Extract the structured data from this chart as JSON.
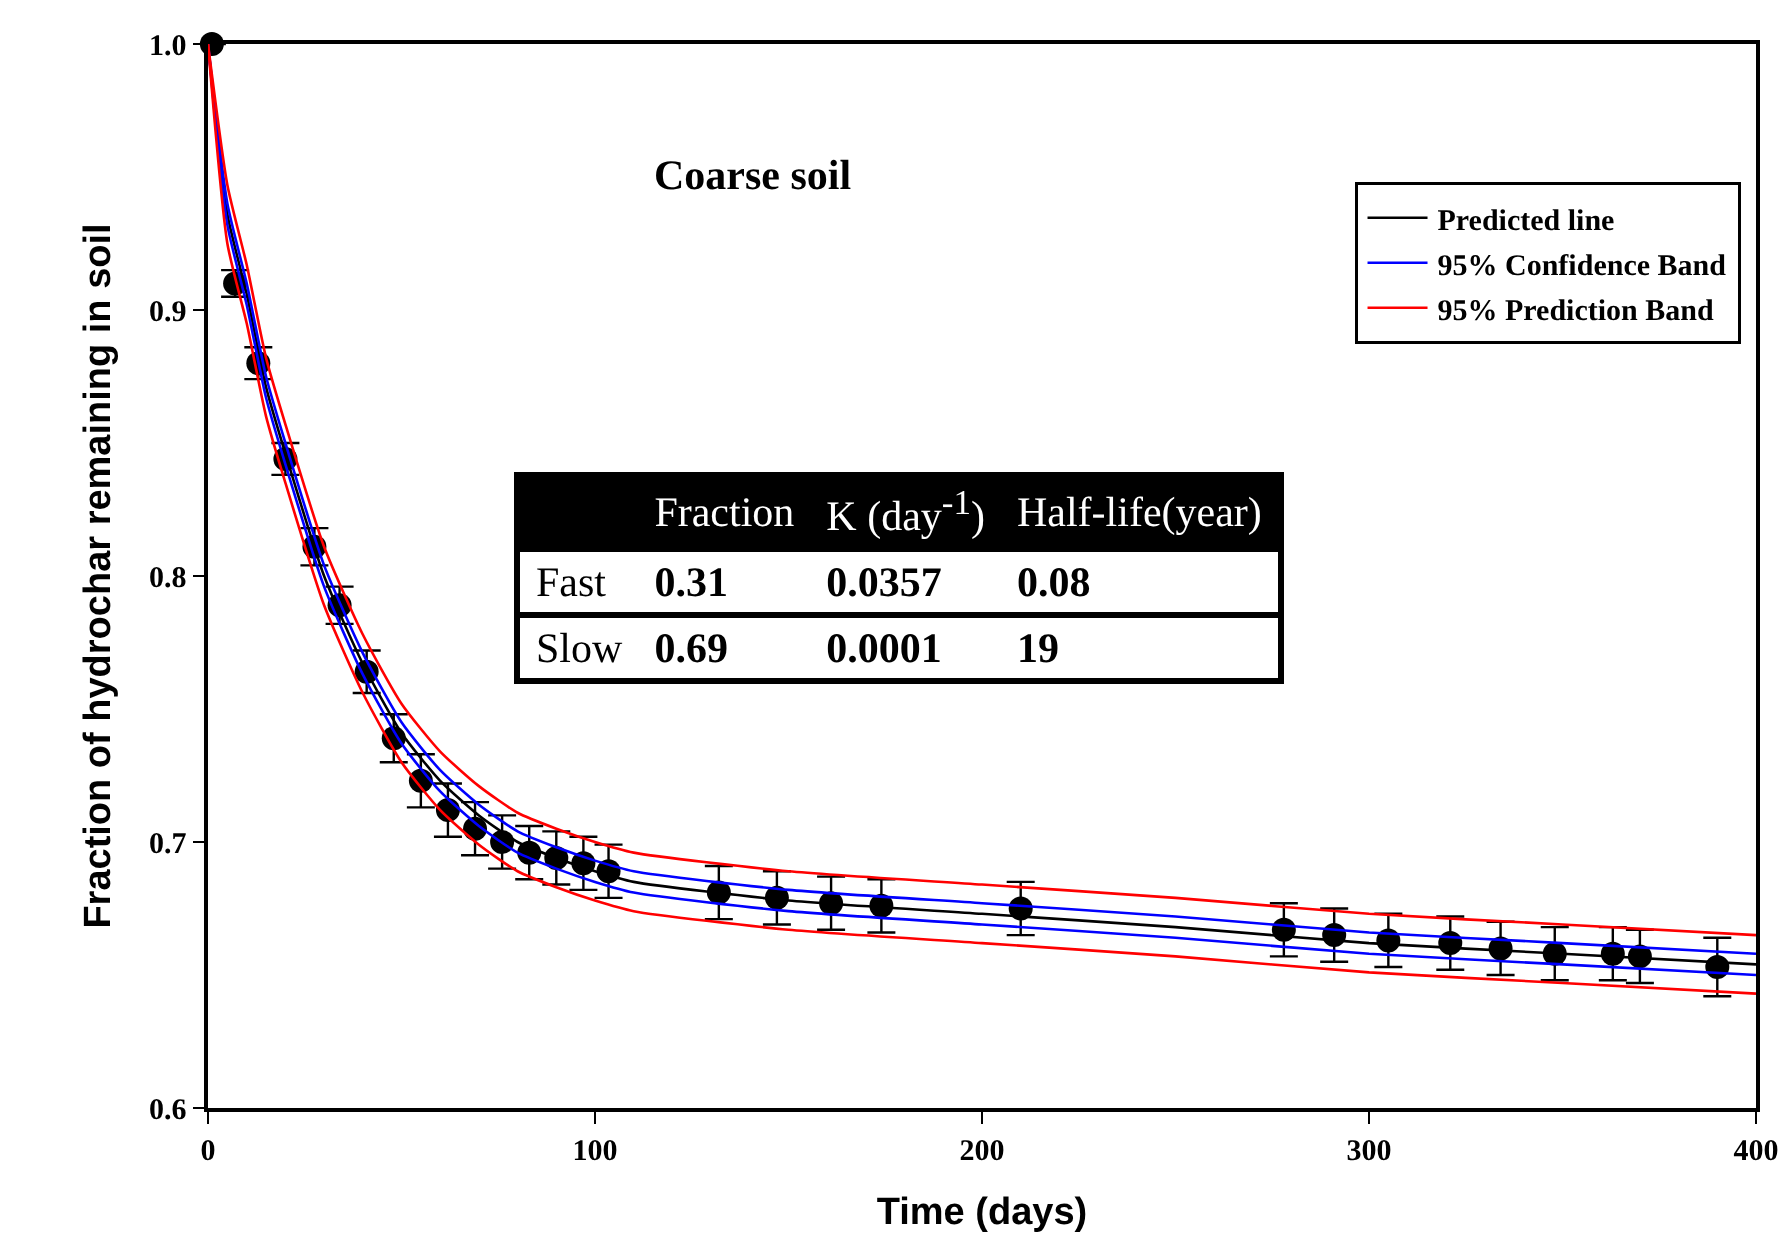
{
  "chart_data": {
    "type": "line",
    "title": "Coarse soil",
    "xlabel": "Time (days)",
    "ylabel": "Fraction of hydrochar remaining in soil",
    "xlim": [
      0,
      400
    ],
    "xticks": [
      0,
      100,
      200,
      300,
      400
    ],
    "ylim": [
      0.6,
      1.0
    ],
    "yticks": [
      {
        "value": 0.6,
        "label": "0.6"
      },
      {
        "value": 0.7,
        "label": "0.7"
      },
      {
        "value": 0.8,
        "label": "0.8"
      },
      {
        "value": 0.9,
        "label": "0.9"
      },
      {
        "value": 1.0,
        "label": "1.0"
      }
    ],
    "grid": false,
    "legend": "top right",
    "marker": "none",
    "line_style": "solid",
    "series": [
      {
        "type": "scatter",
        "marker": "circle",
        "color": "#000000",
        "x": [
          1,
          7,
          13,
          20,
          27.5,
          34,
          41,
          48,
          55,
          62,
          69,
          76,
          83,
          90,
          97,
          103.5,
          132,
          147,
          161,
          174,
          210,
          278,
          291,
          305,
          321,
          334,
          348,
          363,
          370,
          390
        ],
        "values": [
          1.0,
          0.91,
          0.88,
          0.844,
          0.811,
          0.789,
          0.764,
          0.739,
          0.723,
          0.712,
          0.705,
          0.7,
          0.696,
          0.694,
          0.692,
          0.689,
          0.681,
          0.679,
          0.677,
          0.676,
          0.675,
          0.667,
          0.665,
          0.663,
          0.662,
          0.66,
          0.658,
          0.658,
          0.657,
          0.653
        ],
        "errors": [
          null,
          0.005,
          0.006,
          0.006,
          0.007,
          0.007,
          0.008,
          0.009,
          0.01,
          0.01,
          0.01,
          0.01,
          0.01,
          0.01,
          0.01,
          0.01,
          0.01,
          0.01,
          0.01,
          0.01,
          0.01,
          0.01,
          0.01,
          0.01,
          0.01,
          0.01,
          0.01,
          0.01,
          0.01,
          0.011
        ]
      },
      {
        "name": "Predicted line",
        "color": "#000000",
        "x": [
          0,
          5,
          10,
          15,
          20,
          30,
          40,
          50,
          60,
          70,
          80,
          90,
          100,
          110,
          150,
          200,
          250,
          300,
          350,
          400
        ],
        "values": [
          1.0,
          0.936,
          0.906,
          0.871,
          0.846,
          0.8,
          0.767,
          0.741,
          0.723,
          0.71,
          0.7,
          0.694,
          0.689,
          0.685,
          0.678,
          0.673,
          0.668,
          0.662,
          0.658,
          0.654
        ]
      },
      {
        "name": "95% Confidence Band",
        "color": "#0000ff",
        "x": [
          0,
          5,
          10,
          15,
          20,
          30,
          40,
          50,
          60,
          70,
          80,
          90,
          100,
          110,
          150,
          200,
          250,
          300,
          350,
          400
        ],
        "values": [
          1.0,
          0.94,
          0.91,
          0.875,
          0.85,
          0.804,
          0.771,
          0.745,
          0.727,
          0.714,
          0.704,
          0.698,
          0.693,
          0.689,
          0.682,
          0.677,
          0.672,
          0.666,
          0.662,
          0.658
        ]
      },
      {
        "color": "#0000ff",
        "x": [
          0,
          5,
          10,
          15,
          20,
          30,
          40,
          50,
          60,
          70,
          80,
          90,
          100,
          110,
          150,
          200,
          250,
          300,
          350,
          400
        ],
        "values": [
          1.0,
          0.932,
          0.902,
          0.867,
          0.842,
          0.796,
          0.763,
          0.737,
          0.719,
          0.706,
          0.696,
          0.69,
          0.685,
          0.681,
          0.674,
          0.669,
          0.664,
          0.658,
          0.654,
          0.65
        ]
      },
      {
        "name": "95% Prediction Band",
        "color": "#ff0000",
        "x": [
          0,
          5,
          10,
          15,
          20,
          30,
          40,
          50,
          60,
          70,
          80,
          90,
          100,
          110,
          150,
          200,
          250,
          300,
          350,
          400
        ],
        "values": [
          1.0,
          0.947,
          0.917,
          0.882,
          0.857,
          0.811,
          0.778,
          0.752,
          0.734,
          0.721,
          0.711,
          0.705,
          0.7,
          0.696,
          0.689,
          0.684,
          0.679,
          0.673,
          0.669,
          0.665
        ]
      },
      {
        "color": "#ff0000",
        "x": [
          0,
          5,
          10,
          15,
          20,
          30,
          40,
          50,
          60,
          70,
          80,
          90,
          100,
          110,
          150,
          200,
          250,
          300,
          350,
          400
        ],
        "values": [
          1.0,
          0.925,
          0.895,
          0.86,
          0.835,
          0.789,
          0.756,
          0.73,
          0.712,
          0.699,
          0.689,
          0.683,
          0.678,
          0.674,
          0.667,
          0.662,
          0.657,
          0.651,
          0.647,
          0.643
        ]
      }
    ],
    "annotations": [
      "Fraction",
      "K (day$^{-1}$)",
      "Half-life(year)",
      "Fast",
      "0.31",
      "0.0357",
      "0.08",
      "Slow",
      "0.69",
      "0.0001",
      "19"
    ]
  }
}
